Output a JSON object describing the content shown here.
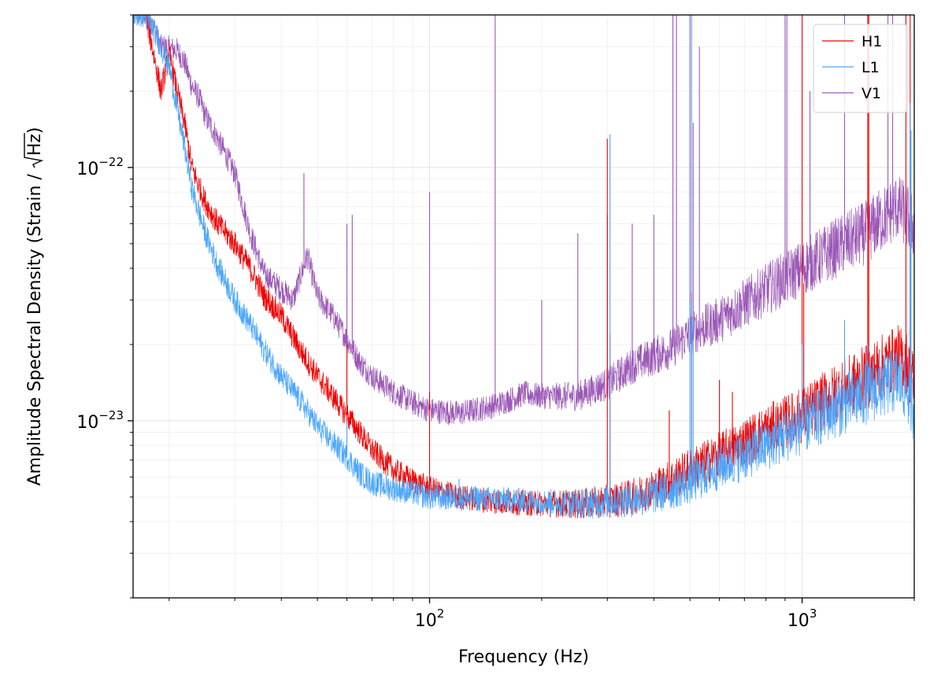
{
  "chart_data": {
    "type": "line",
    "title": "",
    "xlabel": "Frequency (Hz)",
    "ylabel_prefix": "Amplitude Spectral Density (Strain / ",
    "ylabel_radical": "Hz",
    "ylabel_suffix": ")",
    "xscale": "log",
    "yscale": "log",
    "xlim": [
      16,
      2000
    ],
    "ylim": [
      2e-24,
      4e-22
    ],
    "grid": true,
    "legend_position": "top-right",
    "x_ticks": [
      {
        "value": 100,
        "base": "10",
        "exp": "2"
      },
      {
        "value": 1000,
        "base": "10",
        "exp": "3"
      }
    ],
    "y_ticks": [
      {
        "value": 1e-23,
        "base": "10",
        "exp": "−23"
      },
      {
        "value": 1e-22,
        "base": "10",
        "exp": "−22"
      }
    ],
    "series": [
      {
        "name": "H1",
        "color": "#ee0000",
        "points": [
          [
            17,
            4.5e-22
          ],
          [
            18,
            3e-22
          ],
          [
            19,
            2e-22
          ],
          [
            20,
            2.8e-22
          ],
          [
            21,
            2e-22
          ],
          [
            22,
            1.5e-22
          ],
          [
            23,
            1e-22
          ],
          [
            24,
            8.5e-23
          ],
          [
            25,
            7.3e-23
          ],
          [
            27,
            6e-23
          ],
          [
            30,
            5e-23
          ],
          [
            33,
            4e-23
          ],
          [
            36,
            3.1e-23
          ],
          [
            40,
            2.6e-23
          ],
          [
            45,
            1.9e-23
          ],
          [
            50,
            1.5e-23
          ],
          [
            55,
            1.25e-23
          ],
          [
            60,
            1.05e-23
          ],
          [
            65,
            9e-24
          ],
          [
            70,
            7.7e-24
          ],
          [
            80,
            6.4e-24
          ],
          [
            90,
            5.8e-24
          ],
          [
            100,
            5.4e-24
          ],
          [
            120,
            5e-24
          ],
          [
            150,
            4.8e-24
          ],
          [
            200,
            4.7e-24
          ],
          [
            250,
            4.7e-24
          ],
          [
            300,
            4.8e-24
          ],
          [
            350,
            5e-24
          ],
          [
            400,
            5.4e-24
          ],
          [
            450,
            5.9e-24
          ],
          [
            500,
            6.4e-24
          ],
          [
            600,
            7.3e-24
          ],
          [
            700,
            8.2e-24
          ],
          [
            800,
            9.1e-24
          ],
          [
            1000,
            1.05e-23
          ],
          [
            1200,
            1.25e-23
          ],
          [
            1500,
            1.5e-23
          ],
          [
            1800,
            1.78e-23
          ],
          [
            1900,
            1.7e-23
          ],
          [
            2000,
            1.4e-23
          ]
        ],
        "lines": [
          [
            60,
            2e-23
          ],
          [
            100,
            1.3e-23
          ],
          [
            300,
            1.3e-22
          ],
          [
            305,
            2.2e-23
          ],
          [
            440,
            1.1e-23
          ],
          [
            505,
            3.2e-23
          ],
          [
            600,
            1.45e-23
          ],
          [
            650,
            1.3e-23
          ],
          [
            1000,
            4.5e-22
          ],
          [
            1010,
            3.5e-23
          ],
          [
            1500,
            4.5e-22
          ],
          [
            1510,
            4.5e-22
          ],
          [
            1900,
            4.5e-22
          ],
          [
            1950,
            4.5e-22
          ]
        ]
      },
      {
        "name": "L1",
        "color": "#4ba6ff",
        "points": [
          [
            17,
            4e-22
          ],
          [
            18,
            3.6e-22
          ],
          [
            19,
            3e-22
          ],
          [
            20,
            2.5e-22
          ],
          [
            22,
            1.2e-22
          ],
          [
            23,
            8.3e-23
          ],
          [
            24,
            6.7e-23
          ],
          [
            25,
            5.5e-23
          ],
          [
            27,
            4.1e-23
          ],
          [
            30,
            3e-23
          ],
          [
            33,
            2.4e-23
          ],
          [
            36,
            1.9e-23
          ],
          [
            40,
            1.5e-23
          ],
          [
            45,
            1.2e-23
          ],
          [
            50,
            9.5e-24
          ],
          [
            55,
            8.2e-24
          ],
          [
            60,
            7.2e-24
          ],
          [
            65,
            6.2e-24
          ],
          [
            70,
            5.7e-24
          ],
          [
            80,
            5.4e-24
          ],
          [
            90,
            5.2e-24
          ],
          [
            100,
            5e-24
          ],
          [
            150,
            4.9e-24
          ],
          [
            200,
            4.8e-24
          ],
          [
            250,
            4.7e-24
          ],
          [
            300,
            4.8e-24
          ],
          [
            350,
            4.9e-24
          ],
          [
            400,
            5.1e-24
          ],
          [
            450,
            5.4e-24
          ],
          [
            500,
            5.7e-24
          ],
          [
            600,
            6.6e-24
          ],
          [
            700,
            7.3e-24
          ],
          [
            800,
            8e-24
          ],
          [
            1000,
            9.5e-24
          ],
          [
            1200,
            1.1e-23
          ],
          [
            1500,
            1.3e-23
          ],
          [
            1800,
            1.45e-23
          ],
          [
            1900,
            1.35e-23
          ],
          [
            2000,
            1.1e-23
          ]
        ],
        "lines": [
          [
            60,
            1e-23
          ],
          [
            120,
            5.9e-24
          ],
          [
            305,
            1.35e-22
          ],
          [
            500,
            3e-23
          ],
          [
            505,
            4.5e-22
          ],
          [
            510,
            2.5e-23
          ],
          [
            1000,
            2e-23
          ],
          [
            1300,
            2.5e-23
          ],
          [
            1500,
            2e-23
          ],
          [
            1950,
            1.8e-22
          ],
          [
            1960,
            1.4e-22
          ]
        ]
      },
      {
        "name": "V1",
        "color": "#9b59b6",
        "points": [
          [
            17,
            4e-22
          ],
          [
            18,
            3.7e-22
          ],
          [
            19,
            3e-22
          ],
          [
            20,
            2.95e-22
          ],
          [
            21,
            2.9e-22
          ],
          [
            22,
            2.6e-22
          ],
          [
            23,
            2.1e-22
          ],
          [
            24,
            1.9e-22
          ],
          [
            25,
            1.6e-22
          ],
          [
            27,
            1.3e-22
          ],
          [
            30,
            9.5e-23
          ],
          [
            33,
            5.5e-23
          ],
          [
            36,
            3.8e-23
          ],
          [
            40,
            3.3e-23
          ],
          [
            43,
            3e-23
          ],
          [
            47,
            4.5e-23
          ],
          [
            50,
            3.1e-23
          ],
          [
            55,
            2.6e-23
          ],
          [
            60,
            2.1e-23
          ],
          [
            65,
            1.7e-23
          ],
          [
            70,
            1.5e-23
          ],
          [
            80,
            1.3e-23
          ],
          [
            90,
            1.18e-23
          ],
          [
            100,
            1.1e-23
          ],
          [
            120,
            1.07e-23
          ],
          [
            150,
            1.15e-23
          ],
          [
            180,
            1.28e-23
          ],
          [
            200,
            1.25e-23
          ],
          [
            250,
            1.25e-23
          ],
          [
            300,
            1.4e-23
          ],
          [
            350,
            1.65e-23
          ],
          [
            400,
            1.8e-23
          ],
          [
            450,
            1.95e-23
          ],
          [
            500,
            2.2e-23
          ],
          [
            600,
            2.5e-23
          ],
          [
            700,
            2.9e-23
          ],
          [
            800,
            3.3e-23
          ],
          [
            1000,
            4e-23
          ],
          [
            1200,
            4.7e-23
          ],
          [
            1500,
            5.6e-23
          ],
          [
            1800,
            7e-23
          ],
          [
            1900,
            6.5e-23
          ],
          [
            2000,
            5.8e-23
          ]
        ],
        "lines": [
          [
            46,
            9.5e-23
          ],
          [
            60,
            6e-23
          ],
          [
            62,
            6.5e-23
          ],
          [
            100,
            8e-23
          ],
          [
            150,
            4.5e-22
          ],
          [
            200,
            3e-23
          ],
          [
            250,
            5.5e-23
          ],
          [
            300,
            6.5e-23
          ],
          [
            350,
            6e-23
          ],
          [
            400,
            6.5e-23
          ],
          [
            450,
            4.5e-22
          ],
          [
            460,
            4.5e-22
          ],
          [
            500,
            4.5e-22
          ],
          [
            510,
            1.5e-22
          ],
          [
            530,
            3e-22
          ],
          [
            900,
            4.5e-22
          ],
          [
            910,
            4.5e-22
          ],
          [
            1050,
            2e-22
          ],
          [
            1300,
            4.5e-22
          ],
          [
            1700,
            4.5e-22
          ],
          [
            1750,
            4.5e-22
          ]
        ]
      }
    ]
  }
}
